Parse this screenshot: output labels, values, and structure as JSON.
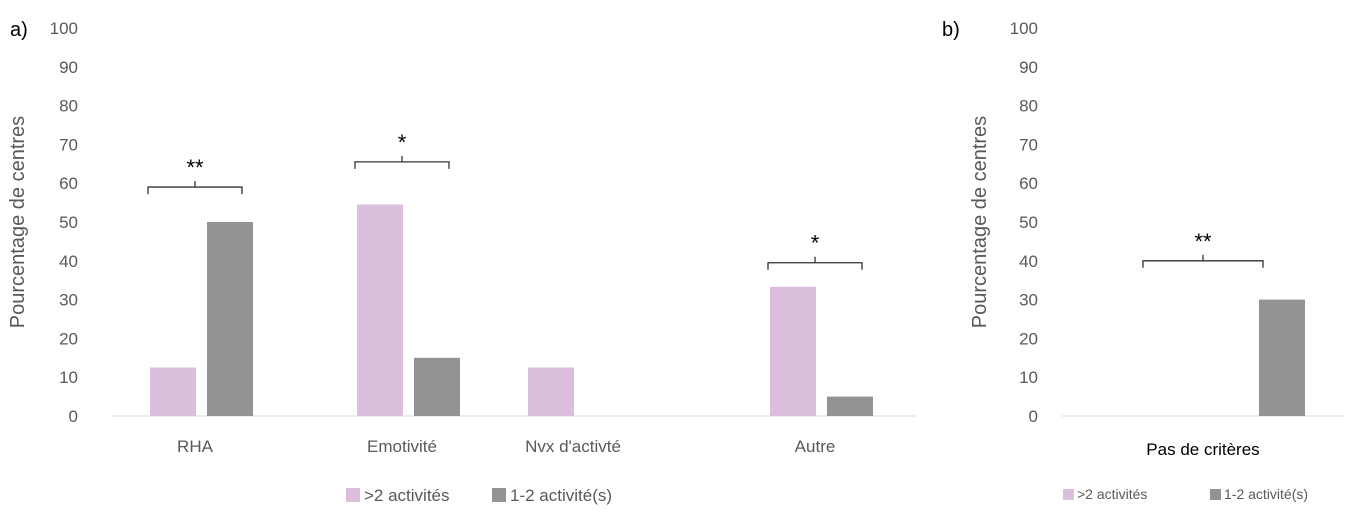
{
  "colors": {
    "pink": "#dcbfdd",
    "gray": "#939393",
    "axis": "#d9d9d9",
    "bracket": "#333333"
  },
  "chart_data": [
    {
      "panel_label": "a)",
      "type": "bar",
      "ylabel": "Pourcentage de centres",
      "ylim": [
        0,
        100
      ],
      "yticks": [
        "0",
        "10",
        "20",
        "30",
        "40",
        "50",
        "60",
        "70",
        "80",
        "90",
        "100"
      ],
      "categories": [
        "RHA",
        "Emotivité",
        "Nvx d'activté",
        "Autre"
      ],
      "series": [
        {
          "name": ">2 activités",
          "color": "#dcbfdd",
          "values": [
            12.5,
            54.5,
            12.5,
            33.3
          ]
        },
        {
          "name": "1-2 activité(s)",
          "color": "#939393",
          "values": [
            50,
            15,
            0,
            5
          ]
        }
      ],
      "significance": [
        {
          "category": "RHA",
          "label": "**",
          "level": 59
        },
        {
          "category": "Emotivité",
          "label": "*",
          "level": 65.5
        },
        {
          "category": "Autre",
          "label": "*",
          "level": 39.5
        }
      ],
      "legend_position": "bottom"
    },
    {
      "panel_label": "b)",
      "type": "bar",
      "ylabel": "Pourcentage de centres",
      "ylim": [
        0,
        100
      ],
      "yticks": [
        "0",
        "10",
        "20",
        "30",
        "40",
        "50",
        "60",
        "70",
        "80",
        "90",
        "100"
      ],
      "categories": [
        "Pas de critères"
      ],
      "series": [
        {
          "name": ">2 activités",
          "color": "#dcbfdd",
          "values": [
            0
          ]
        },
        {
          "name": "1-2 activité(s)",
          "color": "#939393",
          "values": [
            30
          ]
        }
      ],
      "significance": [
        {
          "category": "Pas de critères",
          "label": "**",
          "level": 40
        }
      ],
      "legend_position": "bottom"
    }
  ]
}
